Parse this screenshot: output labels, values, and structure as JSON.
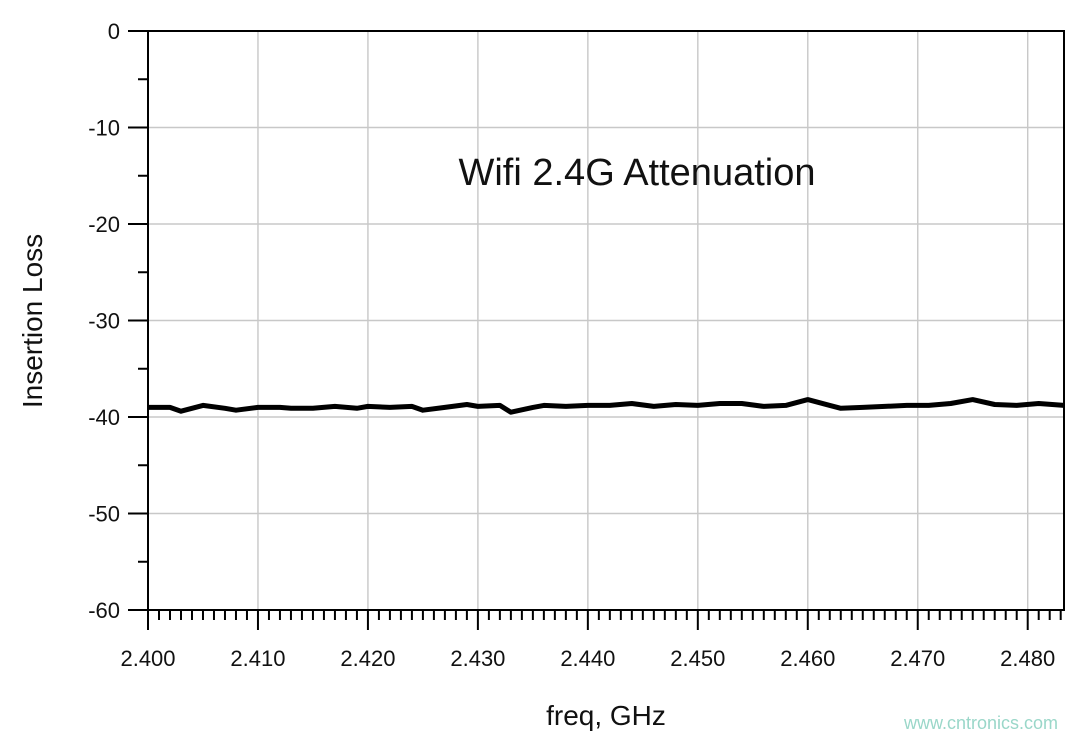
{
  "chart_data": {
    "type": "line",
    "annotation": "Wifi 2.4G Attenuation",
    "xlabel": "freq, GHz",
    "ylabel": "Insertion Loss",
    "xlim": [
      2.4,
      2.4833
    ],
    "ylim": [
      -60,
      0
    ],
    "x_ticks": [
      "2.400",
      "2.410",
      "2.420",
      "2.430",
      "2.440",
      "2.450",
      "2.460",
      "2.470",
      "2.480"
    ],
    "y_ticks": [
      "0",
      "-10",
      "-20",
      "-30",
      "-40",
      "-50",
      "-60"
    ],
    "grid": true,
    "legend": "none",
    "series": [
      {
        "color": "#000000",
        "x": [
          2.4,
          2.402,
          2.403,
          2.405,
          2.407,
          2.408,
          2.41,
          2.412,
          2.413,
          2.415,
          2.417,
          2.419,
          2.42,
          2.422,
          2.424,
          2.425,
          2.427,
          2.429,
          2.43,
          2.432,
          2.433,
          2.435,
          2.436,
          2.438,
          2.44,
          2.442,
          2.444,
          2.446,
          2.448,
          2.45,
          2.452,
          2.454,
          2.456,
          2.458,
          2.46,
          2.462,
          2.463,
          2.465,
          2.467,
          2.469,
          2.471,
          2.473,
          2.475,
          2.477,
          2.479,
          2.481,
          2.4833
        ],
        "y": [
          -39.0,
          -39.0,
          -39.4,
          -38.8,
          -39.1,
          -39.3,
          -39.0,
          -39.0,
          -39.1,
          -39.1,
          -38.9,
          -39.1,
          -38.9,
          -39.0,
          -38.9,
          -39.3,
          -39.0,
          -38.7,
          -38.9,
          -38.8,
          -39.5,
          -39.0,
          -38.8,
          -38.9,
          -38.8,
          -38.8,
          -38.6,
          -38.9,
          -38.7,
          -38.8,
          -38.6,
          -38.6,
          -38.9,
          -38.8,
          -38.2,
          -38.8,
          -39.1,
          -39.0,
          -38.9,
          -38.8,
          -38.8,
          -38.6,
          -38.2,
          -38.7,
          -38.8,
          -38.6,
          -38.8
        ]
      }
    ]
  },
  "watermark": "www.cntronics.com"
}
